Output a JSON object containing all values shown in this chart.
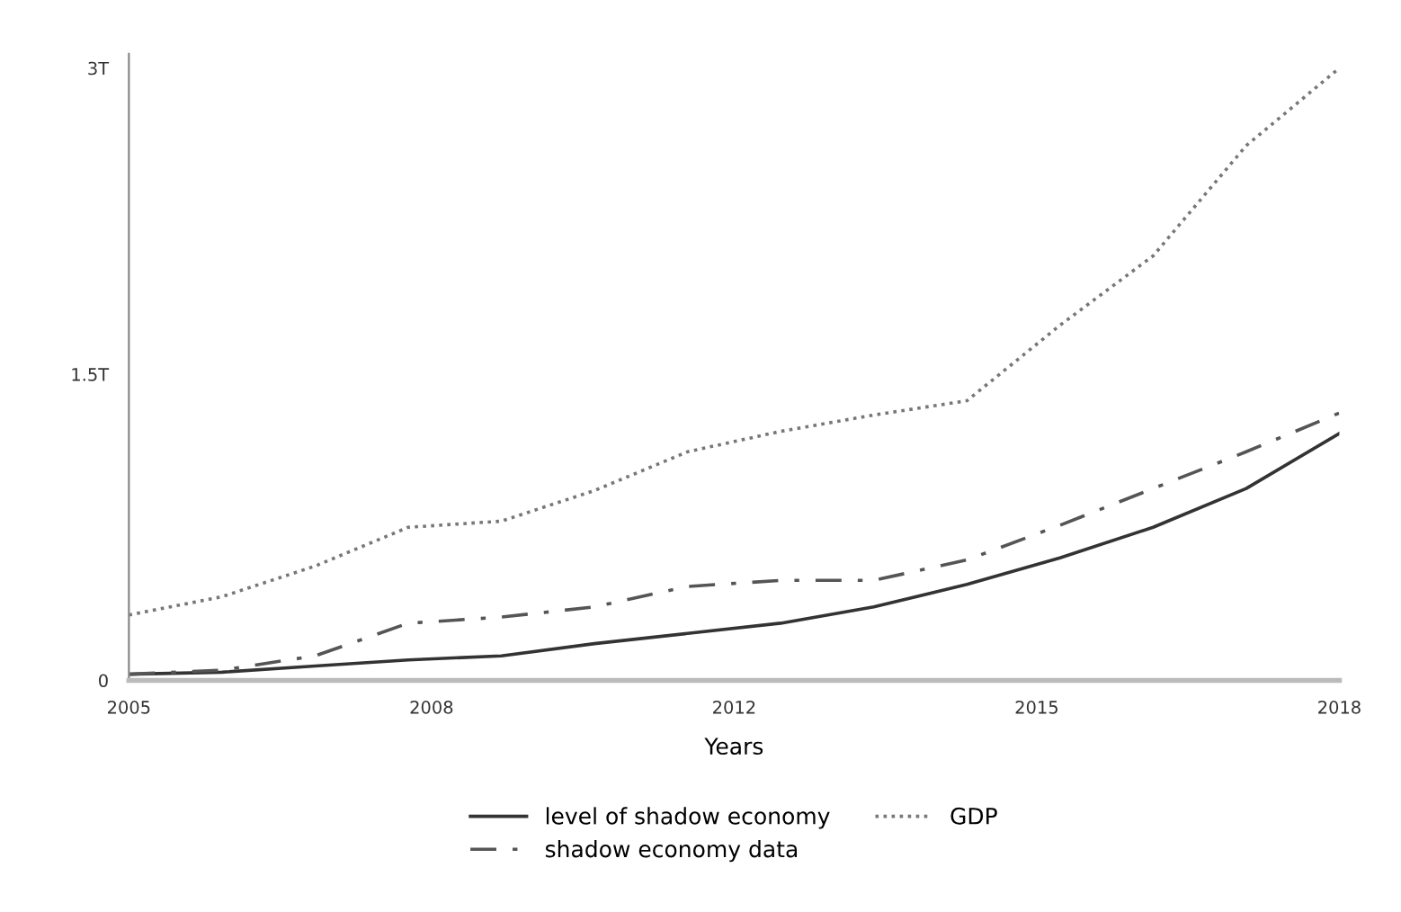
{
  "chart_data": {
    "type": "line",
    "xlabel": "Years",
    "x": [
      2005,
      2006,
      2007,
      2008,
      2009,
      2010,
      2011,
      2012,
      2013,
      2014,
      2015,
      2016,
      2017,
      2018
    ],
    "series": [
      {
        "name": "level of shadow economy",
        "color": "#333333",
        "line_style": "solid",
        "values": [
          0.03,
          0.04,
          0.07,
          0.1,
          0.12,
          0.18,
          0.23,
          0.28,
          0.36,
          0.47,
          0.6,
          0.75,
          0.94,
          1.21
        ]
      },
      {
        "name": "shadow economy data",
        "color": "#555555",
        "line_style": "dashdot",
        "values": [
          0.03,
          0.05,
          0.12,
          0.28,
          0.31,
          0.36,
          0.46,
          0.49,
          0.49,
          0.59,
          0.76,
          0.94,
          1.12,
          1.31
        ]
      },
      {
        "name": "GDP",
        "color": "#777777",
        "line_style": "dotted",
        "values": [
          0.32,
          0.41,
          0.56,
          0.75,
          0.78,
          0.93,
          1.12,
          1.22,
          1.3,
          1.37,
          1.74,
          2.08,
          2.62,
          3.0
        ]
      }
    ],
    "xlim": [
      2005,
      2018
    ],
    "xticks": [
      2005,
      {
        "value": 2008.25,
        "label": "2008"
      },
      {
        "value": 2011.5,
        "label": "2012"
      },
      {
        "value": 2014.75,
        "label": "2015"
      },
      2018
    ],
    "ylim": [
      0,
      3.07
    ],
    "yticks": [
      0,
      {
        "value": 1.5,
        "label": "1.5T"
      },
      {
        "value": 3,
        "label": "3T"
      }
    ],
    "grid": false,
    "legend": "bottom",
    "marker": "none"
  }
}
